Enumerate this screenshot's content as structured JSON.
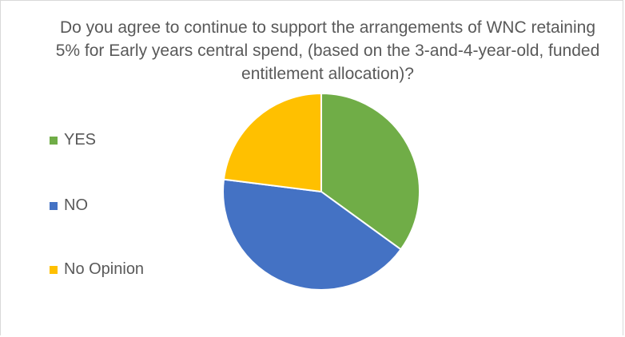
{
  "chart_data": {
    "type": "pie",
    "title": "Do you agree to continue to support the arrangements of WNC retaining 5% for Early years central spend, (based on the 3-and-4-year-old, funded entitlement allocation)?",
    "categories": [
      "YES",
      "NO",
      "No Opinion"
    ],
    "values": [
      35,
      42,
      23
    ],
    "colors": [
      "#70ad47",
      "#4472c4",
      "#ffc000"
    ],
    "legend_position": "left"
  }
}
